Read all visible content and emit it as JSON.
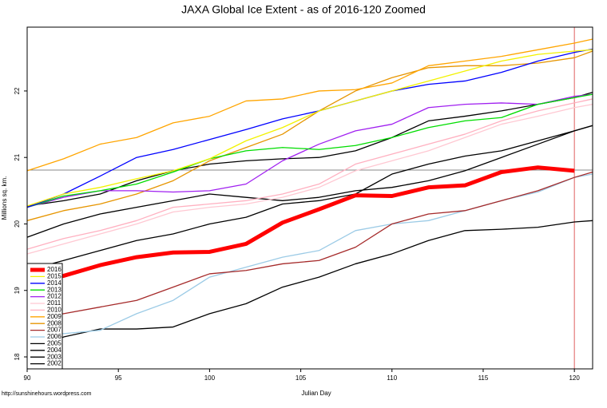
{
  "chart_data": {
    "type": "line",
    "title": "JAXA Global Ice Extent - as of 2016-120 Zoomed",
    "x_label": "Julian Day",
    "y_label": "Millions sq. km.",
    "source": "http://sunshinehours.wordpress.com",
    "x": [
      90,
      92,
      94,
      96,
      98,
      100,
      102,
      104,
      106,
      108,
      110,
      112,
      114,
      116,
      118,
      120,
      121
    ],
    "xlim": [
      90,
      121
    ],
    "ylim": [
      17.82,
      22.96
    ],
    "xticks": [
      90,
      95,
      100,
      105,
      110,
      115,
      120
    ],
    "yticks": [
      18,
      19,
      20,
      21,
      22
    ],
    "hline": 20.81,
    "vline": 120,
    "series": [
      {
        "name": "2016",
        "color": "#ff0000",
        "width": 5,
        "values": [
          19.1,
          19.22,
          19.38,
          19.5,
          19.57,
          19.58,
          19.7,
          20.02,
          20.22,
          20.43,
          20.42,
          20.55,
          20.58,
          20.78,
          20.85,
          20.8,
          null
        ]
      },
      {
        "name": "2015",
        "color": "#f2f200",
        "width": 1.3,
        "values": [
          20.27,
          20.45,
          20.55,
          20.68,
          20.8,
          20.98,
          21.25,
          21.45,
          21.7,
          21.85,
          22.0,
          22.15,
          22.3,
          22.45,
          22.55,
          22.6,
          22.62
        ]
      },
      {
        "name": "2014",
        "color": "#0000ff",
        "width": 1.3,
        "values": [
          20.25,
          20.45,
          20.72,
          21.0,
          21.12,
          21.27,
          21.42,
          21.58,
          21.7,
          21.85,
          22.0,
          22.1,
          22.15,
          22.28,
          22.45,
          22.58,
          22.63
        ]
      },
      {
        "name": "2013",
        "color": "#00dd00",
        "width": 1.3,
        "values": [
          20.25,
          20.42,
          20.5,
          20.6,
          20.78,
          20.98,
          21.1,
          21.15,
          21.12,
          21.18,
          21.3,
          21.45,
          21.55,
          21.6,
          21.8,
          21.9,
          21.95
        ]
      },
      {
        "name": "2012",
        "color": "#a020f0",
        "width": 1.3,
        "values": [
          20.25,
          20.4,
          20.5,
          20.5,
          20.48,
          20.5,
          20.6,
          20.95,
          21.2,
          21.4,
          21.5,
          21.75,
          21.8,
          21.82,
          21.8,
          21.92,
          21.95
        ]
      },
      {
        "name": "2011",
        "color": "#ffc8d2",
        "width": 1.3,
        "values": [
          19.55,
          19.7,
          19.85,
          20.0,
          20.18,
          20.25,
          20.3,
          20.4,
          20.55,
          20.8,
          20.95,
          21.1,
          21.3,
          21.5,
          21.62,
          21.75,
          21.8
        ]
      },
      {
        "name": "2010",
        "color": "#ffb0c0",
        "width": 1.3,
        "values": [
          19.62,
          19.78,
          19.9,
          20.05,
          20.25,
          20.3,
          20.35,
          20.45,
          20.6,
          20.9,
          21.05,
          21.2,
          21.35,
          21.55,
          21.7,
          21.82,
          21.88
        ]
      },
      {
        "name": "2009",
        "color": "#ffa500",
        "width": 1.3,
        "values": [
          20.8,
          20.98,
          21.2,
          21.3,
          21.52,
          21.62,
          21.85,
          21.88,
          22.0,
          22.02,
          22.12,
          22.38,
          22.45,
          22.52,
          22.62,
          22.72,
          22.78
        ]
      },
      {
        "name": "2008",
        "color": "#e69500",
        "width": 1.3,
        "values": [
          20.05,
          20.2,
          20.3,
          20.45,
          20.65,
          20.95,
          21.15,
          21.35,
          21.7,
          22.0,
          22.2,
          22.35,
          22.38,
          22.38,
          22.42,
          22.5,
          22.6
        ]
      },
      {
        "name": "2007",
        "color": "#a52a2a",
        "width": 1.3,
        "values": [
          18.55,
          18.65,
          18.75,
          18.85,
          19.05,
          19.25,
          19.3,
          19.4,
          19.45,
          19.65,
          20.0,
          20.15,
          20.2,
          20.35,
          20.5,
          20.7,
          20.78
        ]
      },
      {
        "name": "2006",
        "color": "#9ccbe6",
        "width": 1.3,
        "values": [
          18.35,
          18.35,
          18.4,
          18.65,
          18.85,
          19.2,
          19.35,
          19.5,
          19.6,
          19.9,
          20.0,
          20.05,
          20.2,
          20.35,
          20.48,
          20.7,
          20.75
        ]
      },
      {
        "name": "2005",
        "color": "#000000",
        "width": 1.3,
        "values": [
          19.8,
          20.0,
          20.15,
          20.25,
          20.35,
          20.45,
          20.4,
          20.35,
          20.4,
          20.5,
          20.55,
          20.65,
          20.8,
          21.0,
          21.2,
          21.4,
          21.48
        ]
      },
      {
        "name": "2004",
        "color": "#000000",
        "width": 1.3,
        "values": [
          20.27,
          20.35,
          20.45,
          20.65,
          20.8,
          20.9,
          20.95,
          20.98,
          21.0,
          21.1,
          21.3,
          21.55,
          21.62,
          21.7,
          21.8,
          21.9,
          21.98
        ]
      },
      {
        "name": "2003",
        "color": "#000000",
        "width": 1.3,
        "values": [
          19.3,
          19.45,
          19.6,
          19.75,
          19.85,
          20.0,
          20.1,
          20.3,
          20.35,
          20.45,
          20.75,
          20.9,
          21.02,
          21.1,
          21.25,
          21.4,
          21.48
        ]
      },
      {
        "name": "2002",
        "color": "#000000",
        "width": 1.3,
        "values": [
          18.05,
          18.3,
          18.42,
          18.42,
          18.45,
          18.65,
          18.8,
          19.05,
          19.2,
          19.4,
          19.55,
          19.75,
          19.9,
          19.92,
          19.95,
          20.03,
          20.05
        ]
      }
    ]
  }
}
